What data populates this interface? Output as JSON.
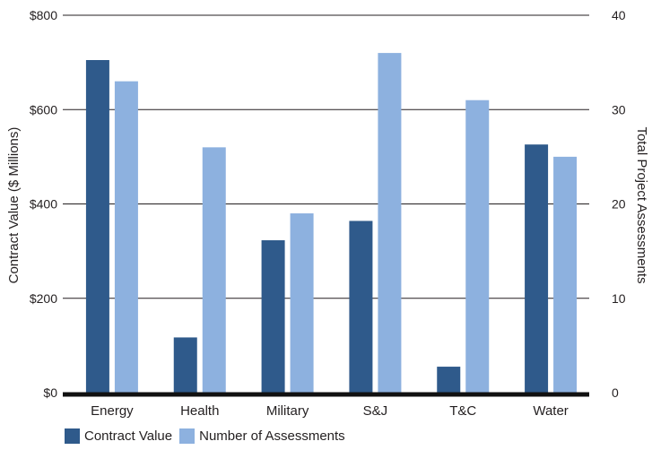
{
  "colors": {
    "contract": "#2f5a8b",
    "assessments": "#8db1df",
    "grid": "#231f20",
    "baseline": "#111111"
  },
  "chart_data": {
    "type": "bar",
    "categories": [
      "Energy",
      "Health",
      "Military",
      "S&J",
      "T&C",
      "Water"
    ],
    "series": [
      {
        "name": "Contract Value",
        "axis": "left",
        "values": [
          705,
          117,
          323,
          364,
          55,
          526
        ]
      },
      {
        "name": "Number of Assessments",
        "axis": "right",
        "values": [
          33,
          26,
          19,
          36,
          31,
          25
        ]
      }
    ],
    "ylabel": "Contract Value ($ Millions)",
    "ylabel_right": "Total Project Assessments",
    "ylim": [
      0,
      800
    ],
    "ylim_right": [
      0,
      40
    ],
    "yticks": [
      0,
      200,
      400,
      600,
      800
    ],
    "yticks_right": [
      0,
      10,
      20,
      30,
      40
    ],
    "ytick_labels": [
      "$0",
      "$200",
      "$400",
      "$600",
      "$800"
    ],
    "ytick_labels_right": [
      "0",
      "10",
      "20",
      "30",
      "40"
    ],
    "grid": true,
    "legend": "bottom-left"
  },
  "legend": {
    "contract_label": "Contract Value",
    "assessments_label": "Number of Assessments"
  }
}
